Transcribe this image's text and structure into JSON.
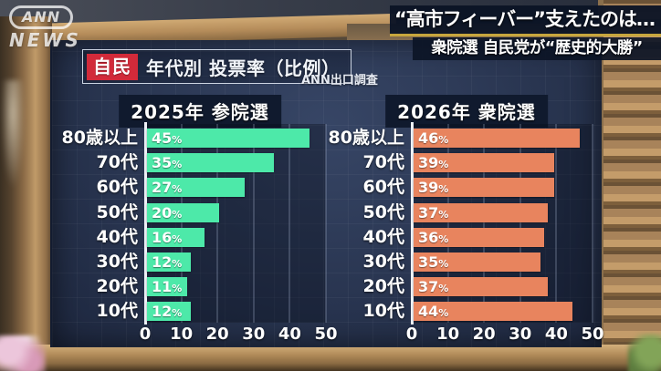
{
  "watermark": {
    "brand": "ANN",
    "sub": "NEWS"
  },
  "headlines": {
    "main": "“高市フィーバー”支えたのは…",
    "sub": "衆院選 自民党が“歴史的大勝”"
  },
  "title_bar": {
    "party_badge": "自民",
    "title": "年代別 投票率（比例）",
    "source": "ANN出口調査"
  },
  "colors": {
    "bar_green": "#4de9a9",
    "bar_orange": "#e8845e",
    "badge_red": "#d22a3a",
    "board_navy": "#27334f",
    "headline_bg": "#0c1526",
    "underline_gold": "#c7a63d"
  },
  "chart_data": [
    {
      "type": "bar",
      "orientation": "horizontal",
      "title": "2025年 参院選",
      "categories": [
        "80歳以上",
        "70代",
        "60代",
        "50代",
        "40代",
        "30代",
        "20代",
        "10代"
      ],
      "values": [
        45,
        35,
        27,
        20,
        16,
        12,
        11,
        12
      ],
      "unit": "%",
      "xlim": [
        0,
        50
      ],
      "xticks": [
        0,
        10,
        20,
        30,
        40,
        50
      ],
      "bar_color": "#4de9a9",
      "grid": true,
      "legend": "none"
    },
    {
      "type": "bar",
      "orientation": "horizontal",
      "title": "2026年 衆院選",
      "categories": [
        "80歳以上",
        "70代",
        "60代",
        "50代",
        "40代",
        "30代",
        "20代",
        "10代"
      ],
      "values": [
        46,
        39,
        39,
        37,
        36,
        35,
        37,
        44
      ],
      "unit": "%",
      "xlim": [
        0,
        50
      ],
      "xticks": [
        0,
        10,
        20,
        30,
        40,
        50
      ],
      "bar_color": "#e8845e",
      "grid": true,
      "legend": "none"
    }
  ]
}
